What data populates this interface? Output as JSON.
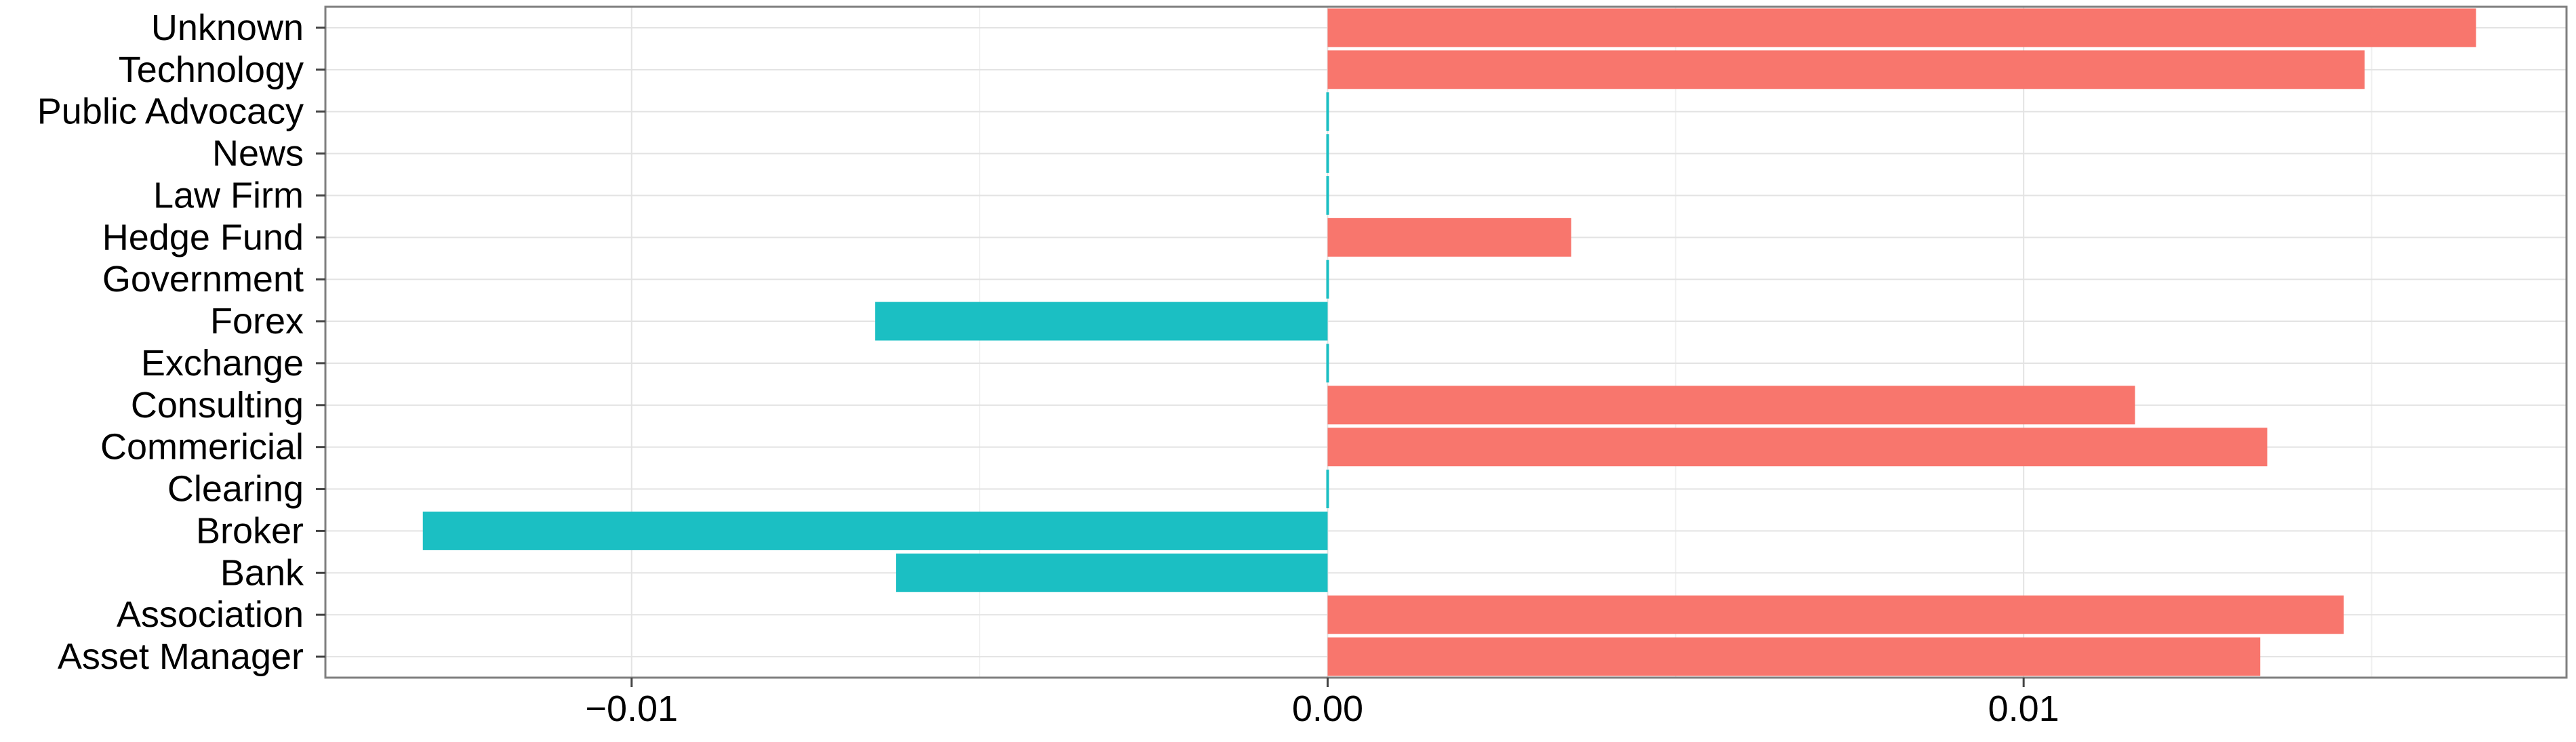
{
  "chart_data": {
    "type": "bar",
    "orientation": "horizontal",
    "categories": [
      "Asset Manager",
      "Association",
      "Bank",
      "Broker",
      "Clearing",
      "Commericial",
      "Consulting",
      "Exchange",
      "Forex",
      "Government",
      "Hedge Fund",
      "Law Firm",
      "News",
      "Public Advocacy",
      "Technology",
      "Unknown"
    ],
    "values": [
      0.0134,
      0.0146,
      -0.0062,
      -0.013,
      0.0,
      0.0135,
      0.0116,
      0.0,
      -0.0065,
      0.0,
      0.0035,
      0.0,
      0.0,
      0.0,
      0.0149,
      0.0165
    ],
    "xlim": [
      -0.0144,
      0.0178
    ],
    "x_ticks": [
      -0.01,
      0.0,
      0.01
    ],
    "x_tick_labels": [
      "−0.01",
      "0.00",
      "0.01"
    ],
    "title": "",
    "xlabel": "",
    "ylabel": "",
    "grid": true,
    "legend": "none",
    "colors": {
      "positive": "#F8766D",
      "negative": "#1BBFC3"
    }
  }
}
